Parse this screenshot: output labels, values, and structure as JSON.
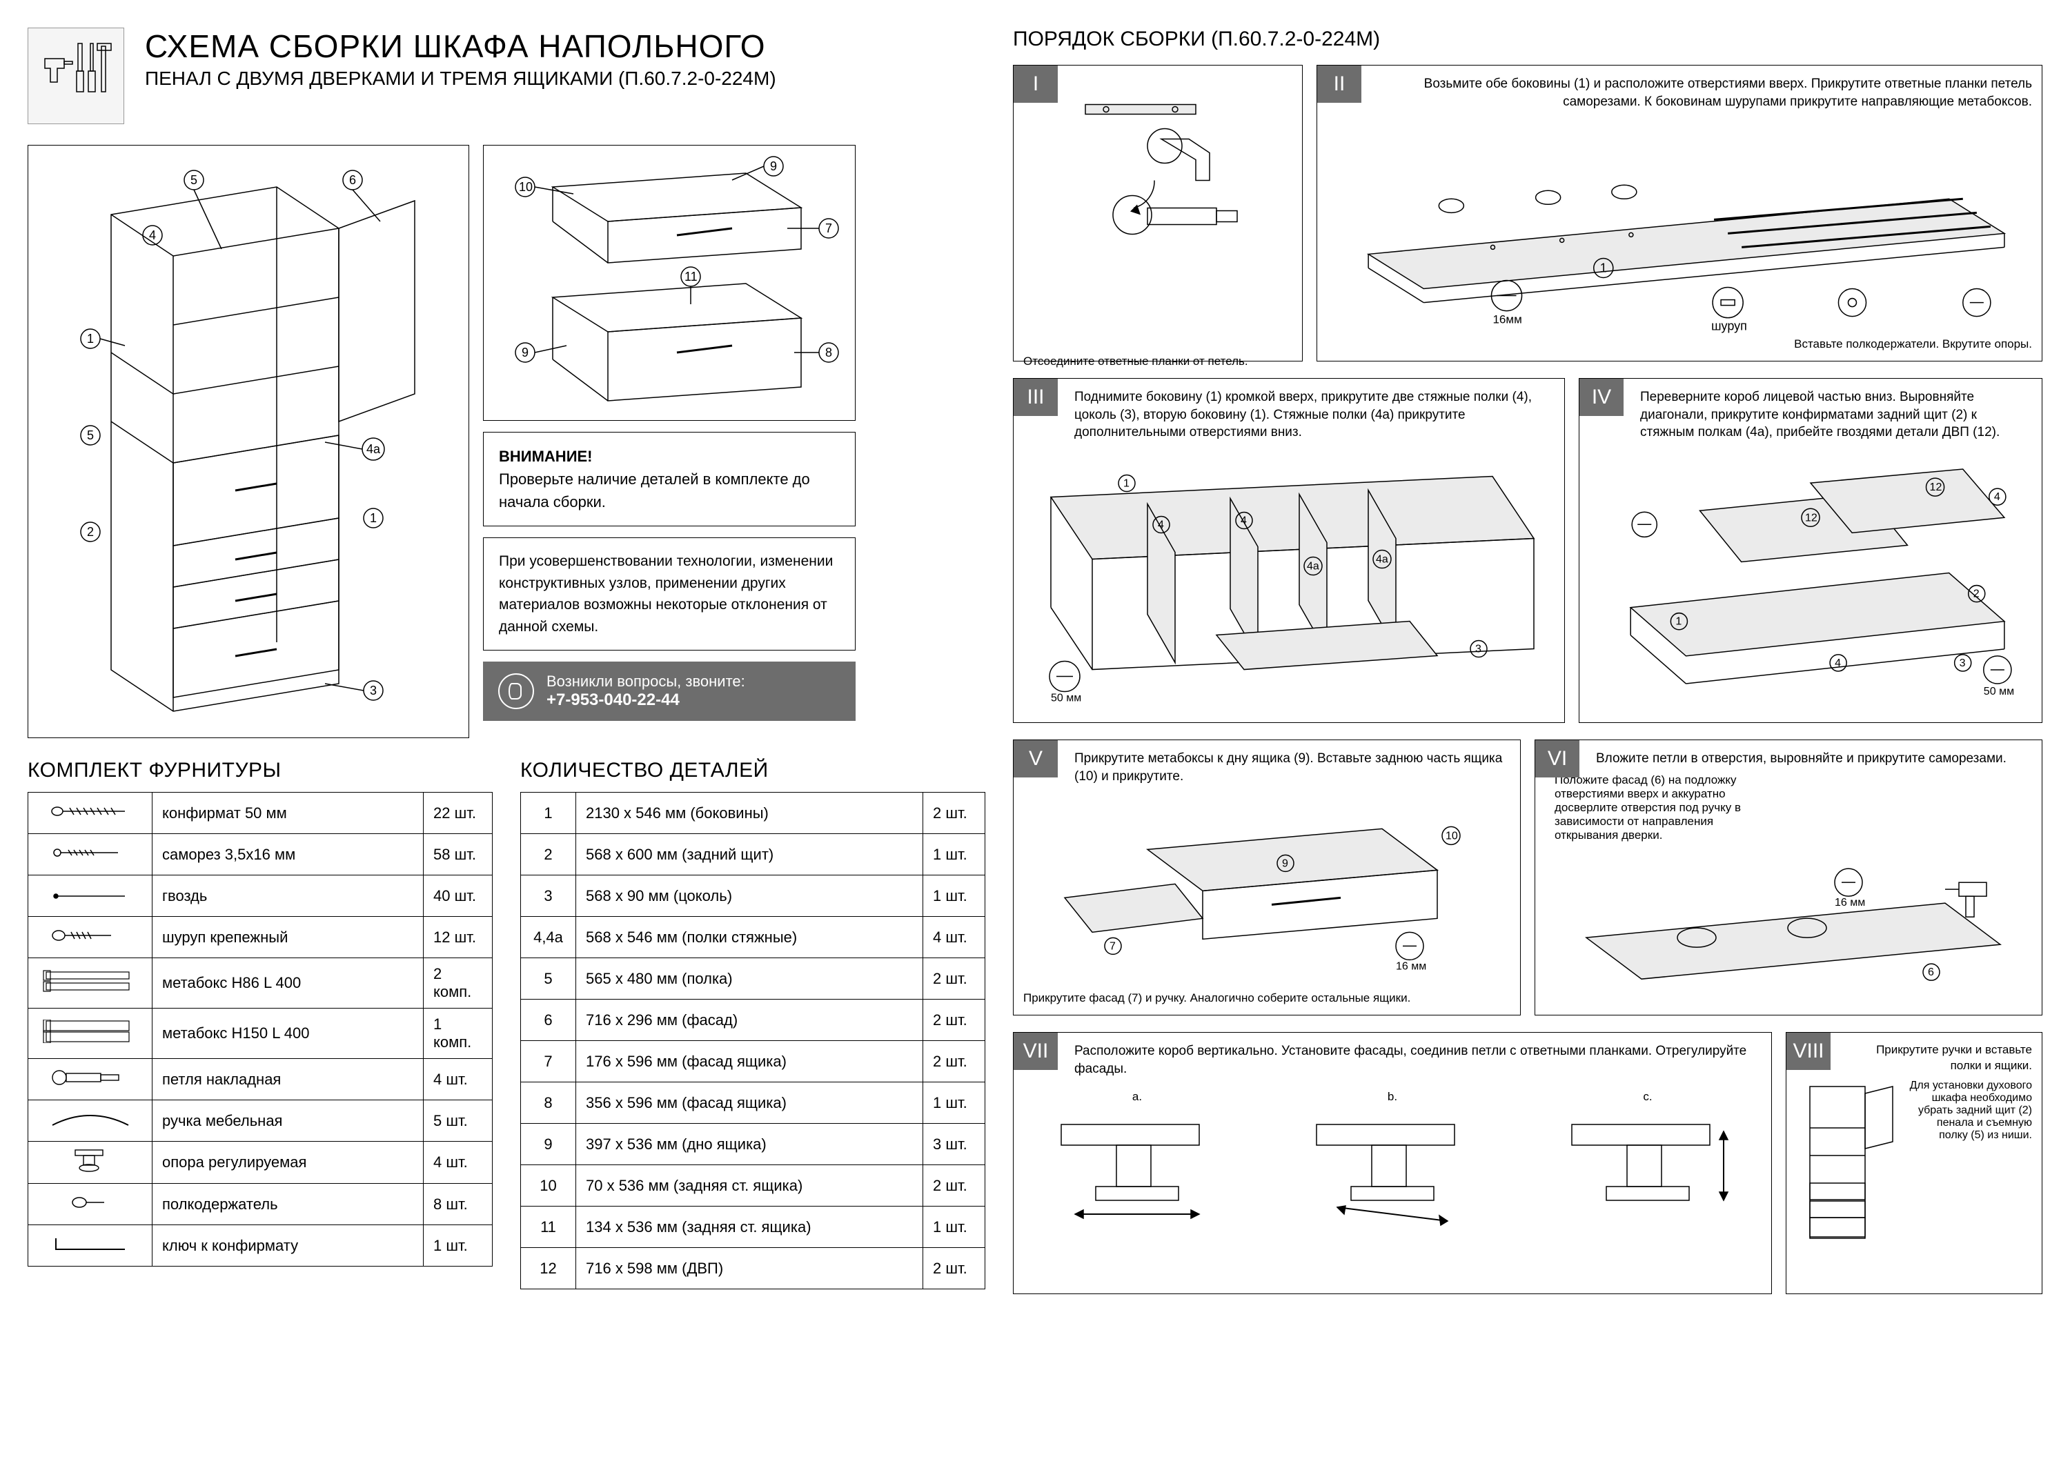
{
  "header": {
    "title": "СХЕМА СБОРКИ ШКАФА НАПОЛЬНОГО",
    "subtitle": "ПЕНАЛ С ДВУМЯ ДВЕРКАМИ И ТРЕМЯ ЯЩИКАМИ (П.60.7.2-0-224М)"
  },
  "warning": {
    "heading": "ВНИМАНИЕ!",
    "text": "Проверьте наличие деталей в комплекте до начала сборки."
  },
  "tech_note": "При усовершенствовании технологии, изменении конструктивных узлов, применении других материалов возможны некоторые отклонения от данной схемы.",
  "call": {
    "line1": "Возникли вопросы, звоните:",
    "phone": "+7-953-040-22-44"
  },
  "hardware": {
    "title": "КОМПЛЕКТ ФУРНИТУРЫ",
    "rows": [
      {
        "name": "конфирмат 50 мм",
        "qty": "22 шт."
      },
      {
        "name": "саморез 3,5х16 мм",
        "qty": "58 шт."
      },
      {
        "name": "гвоздь",
        "qty": "40 шт."
      },
      {
        "name": "шуруп крепежный",
        "qty": "12 шт."
      },
      {
        "name": "метабокс H86 L 400",
        "qty": "2 комп."
      },
      {
        "name": "метабокс H150 L 400",
        "qty": "1 комп."
      },
      {
        "name": "петля накладная",
        "qty": "4 шт."
      },
      {
        "name": "ручка мебельная",
        "qty": "5 шт."
      },
      {
        "name": "опора регулируемая",
        "qty": "4 шт."
      },
      {
        "name": "полкодержатель",
        "qty": "8 шт."
      },
      {
        "name": "ключ к конфирмату",
        "qty": "1 шт."
      }
    ]
  },
  "parts": {
    "title": "КОЛИЧЕСТВО ДЕТАЛЕЙ",
    "rows": [
      {
        "num": "1",
        "desc": "2130 х 546 мм (боковины)",
        "qty": "2 шт."
      },
      {
        "num": "2",
        "desc": "568 х 600 мм (задний щит)",
        "qty": "1 шт."
      },
      {
        "num": "3",
        "desc": "568 х 90 мм (цоколь)",
        "qty": "1 шт."
      },
      {
        "num": "4,4а",
        "desc": "568 х 546 мм (полки стяжные)",
        "qty": "4 шт."
      },
      {
        "num": "5",
        "desc": "565 х 480 мм (полка)",
        "qty": "2 шт."
      },
      {
        "num": "6",
        "desc": "716 х 296 мм (фасад)",
        "qty": "2 шт."
      },
      {
        "num": "7",
        "desc": "176 х 596 мм (фасад ящика)",
        "qty": "2 шт."
      },
      {
        "num": "8",
        "desc": "356 х 596 мм (фасад ящика)",
        "qty": "1 шт."
      },
      {
        "num": "9",
        "desc": "397 х 536 мм (дно ящика)",
        "qty": "3 шт."
      },
      {
        "num": "10",
        "desc": "70 х 536 мм (задняя ст. ящика)",
        "qty": "2 шт."
      },
      {
        "num": "11",
        "desc": "134 х 536 мм (задняя ст. ящика)",
        "qty": "1 шт."
      },
      {
        "num": "12",
        "desc": "716 х 598 мм (ДВП)",
        "qty": "2 шт."
      }
    ]
  },
  "assembly": {
    "title": "ПОРЯДОК СБОРКИ (П.60.7.2-0-224М)",
    "steps": {
      "I": {
        "num": "I",
        "text_bottom": "Отсоедините ответные планки от петель."
      },
      "II": {
        "num": "II",
        "text_top": "Возьмите обе боковины (1) и расположите отверстиями вверх. Прикрутите ответные планки петель саморезами. К боковинам шурупами прикрутите направляющие метабоксов.",
        "text_bottom": "Вставьте полкодержатели. Вкрутите опоры.",
        "labels": {
          "part": "1",
          "shurup": "шуруп",
          "mm16": "16мм"
        }
      },
      "III": {
        "num": "III",
        "text": "Поднимите боковину (1) кромкой вверх, прикрутите две стяжные полки (4), цоколь (3), вторую боковину (1). Стяжные полки (4а) прикрутите дополнительными отверстиями вниз.",
        "mm50": "50 мм"
      },
      "IV": {
        "num": "IV",
        "text": "Переверните короб лицевой частью вниз. Выровняйте диагонали, прикрутите конфирматами задний щит (2) к стяжным полкам (4а), прибейте гвоздями детали ДВП (12).",
        "mm50": "50 мм"
      },
      "V": {
        "num": "V",
        "text_top": "Прикрутите метабоксы к дну ящика (9). Вставьте заднюю часть ящика (10) и прикрутите.",
        "text_bottom": "Прикрутите фасад (7) и ручку. Аналогично соберите остальные ящики.",
        "mm16": "16 мм"
      },
      "VI": {
        "num": "VI",
        "text_top": "Вложите петли в отверстия, выровняйте и прикрутите саморезами.",
        "text_mid": "Положите фасад (6) на подложку отверстиями вверх и аккуратно досверлите отверстия под ручку в зависимости от направления открывания дверки.",
        "mm16": "16 мм"
      },
      "VII": {
        "num": "VII",
        "text": "Расположите короб вертикально. Установите фасады, соединив петли с ответными планками. Отрегулируйте фасады.",
        "a": "a.",
        "b": "b.",
        "c": "c."
      },
      "VIII": {
        "num": "VIII",
        "text_top": "Прикрутите ручки и вставьте полки и ящики.",
        "text_bottom": "Для установки духового шкафа необходимо убрать задний щит (2) пенала и съемную полку (5) из ниши."
      }
    }
  },
  "main_diagram_callouts": [
    "1",
    "2",
    "3",
    "4",
    "4а",
    "5",
    "6",
    "7",
    "8",
    "9",
    "10",
    "11"
  ],
  "colors": {
    "bg": "#ffffff",
    "text": "#000000",
    "gray_box": "#6d6d6d",
    "light_fill": "#ebebeb",
    "border": "#000000"
  }
}
